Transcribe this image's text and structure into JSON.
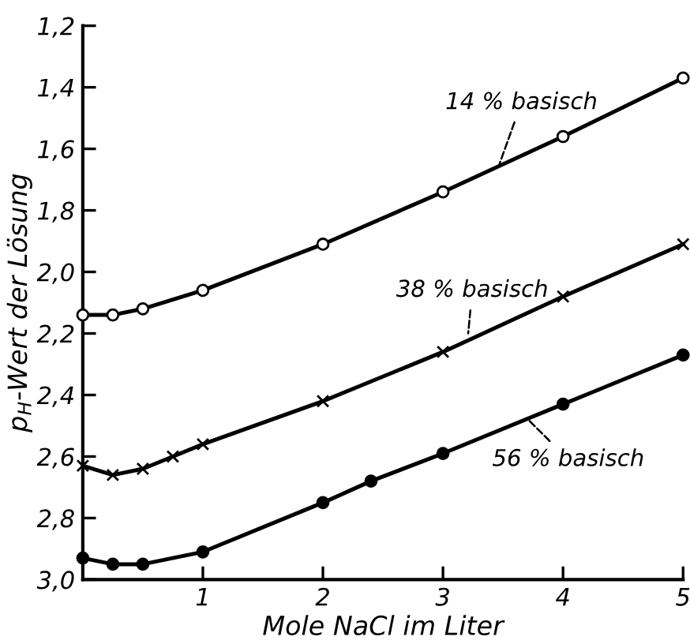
{
  "chart_data": {
    "type": "line",
    "xlabel": "Mole NaCl im Liter",
    "ylabel": "p$_{H}$-Wert der Lösung",
    "xlim": [
      0,
      5
    ],
    "xticks": [
      1,
      2,
      3,
      4,
      5
    ],
    "ylim": [
      3.0,
      1.2
    ],
    "yticks": [
      {
        "value": 1.2,
        "label": "1,2"
      },
      {
        "value": 1.4,
        "label": "1,4"
      },
      {
        "value": 1.6,
        "label": "1,6"
      },
      {
        "value": 1.8,
        "label": "1,8"
      },
      {
        "value": 2.0,
        "label": "2,0"
      },
      {
        "value": 2.2,
        "label": "2,2"
      },
      {
        "value": 2.4,
        "label": "2,4"
      },
      {
        "value": 2.6,
        "label": "2,6"
      },
      {
        "value": 2.8,
        "label": "2,8"
      },
      {
        "value": 3.0,
        "label": "3,0"
      }
    ],
    "grid": false,
    "legend": false,
    "series": [
      {
        "color": "#000000",
        "marker": "circle",
        "x": [
          0,
          0.25,
          0.5,
          1,
          2,
          3,
          4,
          5
        ],
        "values": [
          2.14,
          2.14,
          2.12,
          2.06,
          1.91,
          1.74,
          1.56,
          1.37
        ]
      },
      {
        "color": "#000000",
        "marker": "cross",
        "x": [
          0,
          0.25,
          0.5,
          0.75,
          1,
          2,
          3,
          4,
          5
        ],
        "values": [
          2.63,
          2.66,
          2.64,
          2.6,
          2.56,
          2.42,
          2.26,
          2.08,
          1.91
        ]
      },
      {
        "color": "#000000",
        "marker": "circle",
        "x": [
          0,
          0.25,
          0.5,
          1,
          2,
          2.4,
          3,
          4,
          5
        ],
        "values": [
          2.93,
          2.95,
          2.95,
          2.91,
          2.75,
          2.68,
          2.59,
          2.43,
          2.27
        ]
      }
    ],
    "annotations": [
      {
        "text": "14 % basisch",
        "x": 3.47,
        "y": 1.65
      },
      {
        "text": "38 % basisch",
        "x": 3.21,
        "y": 2.2
      },
      {
        "text": "56 % basisch",
        "x": 3.71,
        "y": 2.48
      }
    ]
  }
}
